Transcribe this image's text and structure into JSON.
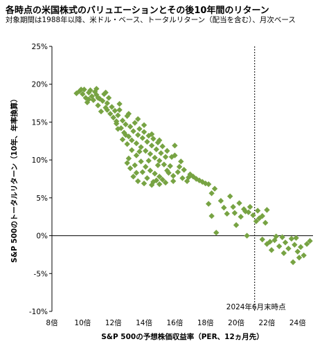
{
  "chart_data": {
    "type": "scatter",
    "title": "各時点の米国株式のバリュエーションとその後10年間のリターン",
    "subtitle": "対象期間は1988年以降、米ドル・ベース、トータルリターン（配当を含む）、月次ベース",
    "xlabel": "S&P 500の予想株価収益率（PER、12ヵ月先）",
    "ylabel": "S&P 500のトータルリターン（10年、年率換算）",
    "xlim": [
      8,
      25
    ],
    "ylim": [
      -10,
      25
    ],
    "x_ticks": [
      8,
      10,
      12,
      14,
      16,
      18,
      20,
      22,
      24
    ],
    "x_tick_labels": [
      "8倍",
      "10倍",
      "12倍",
      "14倍",
      "16倍",
      "18倍",
      "20倍",
      "22倍",
      "24倍"
    ],
    "y_ticks": [
      -10,
      -5,
      0,
      5,
      10,
      15,
      20,
      25
    ],
    "y_tick_labels": [
      "-10%",
      "-5%",
      "0%",
      "5%",
      "10%",
      "15%",
      "20%",
      "25%"
    ],
    "marker_color": "#77a343",
    "reference_line": {
      "x": 21.2,
      "label": "2024年6月末時点",
      "style": "dotted"
    },
    "grid": false,
    "points": [
      [
        9.6,
        18.8
      ],
      [
        9.8,
        19.1
      ],
      [
        10.0,
        18.7
      ],
      [
        10.1,
        19.3
      ],
      [
        10.2,
        18.2
      ],
      [
        10.3,
        17.6
      ],
      [
        10.4,
        18.9
      ],
      [
        10.5,
        19.2
      ],
      [
        10.6,
        18.4
      ],
      [
        10.7,
        17.9
      ],
      [
        10.8,
        19.0
      ],
      [
        10.9,
        18.6
      ],
      [
        11.0,
        17.2
      ],
      [
        11.1,
        18.1
      ],
      [
        11.2,
        16.4
      ],
      [
        11.3,
        17.8
      ],
      [
        11.4,
        18.7
      ],
      [
        11.5,
        16.9
      ],
      [
        11.6,
        17.5
      ],
      [
        11.7,
        18.2
      ],
      [
        11.8,
        16.1
      ],
      [
        11.9,
        17.0
      ],
      [
        12.0,
        15.6
      ],
      [
        12.1,
        16.5
      ],
      [
        12.2,
        14.8
      ],
      [
        12.3,
        15.9
      ],
      [
        12.4,
        16.6
      ],
      [
        12.5,
        14.2
      ],
      [
        12.6,
        15.2
      ],
      [
        12.7,
        13.6
      ],
      [
        12.8,
        14.7
      ],
      [
        12.9,
        15.8
      ],
      [
        13.0,
        13.1
      ],
      [
        13.1,
        14.4
      ],
      [
        13.2,
        12.6
      ],
      [
        13.3,
        13.8
      ],
      [
        13.4,
        14.9
      ],
      [
        13.5,
        12.2
      ],
      [
        13.6,
        13.3
      ],
      [
        13.7,
        14.1
      ],
      [
        13.8,
        11.7
      ],
      [
        13.9,
        12.9
      ],
      [
        14.0,
        13.7
      ],
      [
        14.1,
        11.2
      ],
      [
        14.2,
        12.4
      ],
      [
        14.3,
        13.2
      ],
      [
        14.4,
        10.8
      ],
      [
        14.5,
        11.9
      ],
      [
        14.6,
        12.8
      ],
      [
        14.7,
        10.3
      ],
      [
        14.8,
        11.4
      ],
      [
        14.9,
        12.3
      ],
      [
        15.0,
        9.9
      ],
      [
        15.1,
        10.9
      ],
      [
        15.2,
        11.8
      ],
      [
        15.3,
        9.4
      ],
      [
        15.4,
        10.4
      ],
      [
        12.3,
        14.1
      ],
      [
        12.6,
        12.7
      ],
      [
        12.9,
        12.1
      ],
      [
        13.2,
        11.3
      ],
      [
        13.5,
        10.6
      ],
      [
        13.8,
        9.8
      ],
      [
        14.1,
        9.1
      ],
      [
        14.4,
        8.6
      ],
      [
        14.7,
        8.2
      ],
      [
        15.0,
        7.8
      ],
      [
        13.0,
        10.2
      ],
      [
        13.4,
        9.3
      ],
      [
        13.9,
        8.4
      ],
      [
        14.2,
        7.6
      ],
      [
        14.6,
        7.1
      ],
      [
        15.2,
        7.4
      ],
      [
        15.6,
        8.3
      ],
      [
        15.9,
        7.9
      ],
      [
        16.2,
        8.4
      ],
      [
        16.5,
        7.6
      ],
      [
        16.8,
        7.2
      ],
      [
        17.2,
        7.8
      ],
      [
        17.6,
        7.3
      ],
      [
        18.0,
        6.9
      ],
      [
        18.4,
        5.6
      ],
      [
        18.6,
        6.2
      ],
      [
        18.2,
        4.2
      ],
      [
        18.4,
        2.6
      ],
      [
        19.0,
        4.6
      ],
      [
        19.4,
        2.9
      ],
      [
        19.8,
        3.8
      ],
      [
        20.2,
        4.3
      ],
      [
        20.5,
        3.5
      ],
      [
        20.8,
        3.1
      ],
      [
        21.1,
        2.7
      ],
      [
        21.4,
        3.3
      ],
      [
        21.7,
        2.6
      ],
      [
        22.0,
        3.4
      ],
      [
        21.3,
        1.9
      ],
      [
        19.6,
        5.2
      ],
      [
        20.0,
        1.4
      ],
      [
        18.7,
        0.4
      ],
      [
        20.7,
        0.0
      ],
      [
        21.7,
        -0.5
      ],
      [
        22.0,
        -1.1
      ],
      [
        22.5,
        -0.6
      ],
      [
        22.8,
        -1.4
      ],
      [
        23.0,
        -0.2
      ],
      [
        23.2,
        -0.9
      ],
      [
        23.4,
        -1.7
      ],
      [
        23.6,
        -0.4
      ],
      [
        23.8,
        -1.2
      ],
      [
        24.0,
        -2.1
      ],
      [
        24.2,
        -1.5
      ],
      [
        24.4,
        -2.6
      ],
      [
        24.6,
        -1.1
      ],
      [
        24.8,
        -0.7
      ],
      [
        23.7,
        -3.5
      ],
      [
        22.2,
        -0.8
      ],
      [
        16.4,
        9.8
      ],
      [
        16.0,
        10.6
      ],
      [
        15.7,
        9.2
      ],
      [
        15.5,
        8.6
      ],
      [
        14.9,
        9.3
      ],
      [
        14.3,
        9.9
      ],
      [
        13.7,
        11.1
      ],
      [
        12.8,
        13.3
      ],
      [
        12.2,
        15.1
      ],
      [
        11.6,
        16.6
      ],
      [
        11.0,
        18.2
      ],
      [
        10.4,
        18.0
      ],
      [
        9.9,
        19.3
      ],
      [
        10.9,
        19.4
      ],
      [
        11.5,
        18.9
      ],
      [
        12.4,
        17.4
      ],
      [
        13.0,
        16.1
      ],
      [
        13.6,
        15.4
      ],
      [
        14.0,
        14.6
      ],
      [
        14.5,
        13.4
      ],
      [
        15.0,
        12.6
      ],
      [
        15.5,
        11.2
      ],
      [
        16.0,
        11.9
      ],
      [
        15.8,
        10.4
      ],
      [
        16.3,
        9.1
      ],
      [
        16.6,
        8.7
      ],
      [
        17.0,
        8.1
      ],
      [
        17.4,
        7.5
      ],
      [
        17.8,
        7.1
      ],
      [
        18.2,
        6.8
      ],
      [
        13.3,
        7.8
      ],
      [
        13.6,
        7.2
      ],
      [
        14.0,
        6.9
      ],
      [
        14.5,
        6.7
      ],
      [
        15.0,
        6.8
      ],
      [
        15.4,
        7.0
      ],
      [
        12.9,
        9.6
      ],
      [
        13.1,
        8.9
      ],
      [
        13.5,
        8.3
      ],
      [
        14.8,
        7.3
      ],
      [
        15.9,
        7.2
      ],
      [
        16.9,
        7.7
      ],
      [
        19.2,
        3.7
      ],
      [
        20.3,
        2.5
      ],
      [
        20.9,
        3.8
      ],
      [
        21.5,
        2.3
      ],
      [
        22.3,
        -1.9
      ],
      [
        23.1,
        -2.3
      ],
      [
        24.1,
        -2.9
      ],
      [
        23.9,
        -0.3
      ],
      [
        22.6,
        -0.1
      ],
      [
        21.9,
        1.7
      ],
      [
        20.6,
        3.2
      ],
      [
        19.9,
        3.0
      ]
    ]
  }
}
